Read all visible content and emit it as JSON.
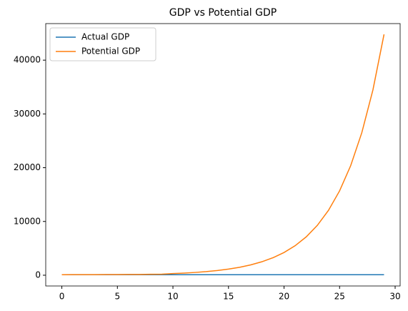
{
  "chart_data": {
    "type": "line",
    "title": "GDP vs Potential GDP",
    "x": [
      0,
      1,
      2,
      3,
      4,
      5,
      6,
      7,
      8,
      9,
      10,
      11,
      12,
      13,
      14,
      15,
      16,
      17,
      18,
      19,
      20,
      21,
      22,
      23,
      24,
      25,
      26,
      27,
      28,
      29
    ],
    "series": [
      {
        "name": "Actual GDP",
        "color": "#1f77b4",
        "values": [
          100,
          100,
          100,
          100,
          100,
          100,
          100,
          100,
          100,
          100,
          100,
          100,
          100,
          100,
          100,
          100,
          100,
          100,
          100,
          100,
          100,
          100,
          100,
          100,
          100,
          100,
          100,
          100,
          100,
          100
        ]
      },
      {
        "name": "Potential GDP",
        "color": "#ff7f0e",
        "values": [
          100,
          105,
          110,
          116,
          122,
          130,
          140,
          152,
          170,
          200,
          306,
          398,
          518,
          673,
          875,
          1138,
          1479,
          1923,
          2500,
          3250,
          4225,
          5490,
          7140,
          9280,
          12070,
          15690,
          20390,
          26510,
          34460,
          44800
        ]
      }
    ],
    "xlim": [
      -1.45,
      30.45
    ],
    "ylim": [
      -2000,
      46800
    ],
    "xticks": [
      0,
      5,
      10,
      15,
      20,
      25,
      30
    ],
    "yticks": [
      0,
      10000,
      20000,
      30000,
      40000
    ],
    "legend": "upper left"
  }
}
